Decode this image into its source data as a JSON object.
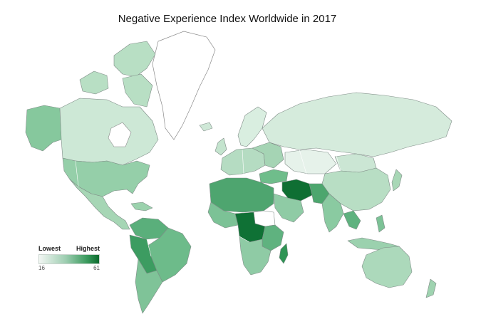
{
  "title": "Negative Experience Index Worldwide in 2017",
  "legend": {
    "low_label": "Lowest",
    "high_label": "Highest",
    "min_value": "16",
    "max_value": "61",
    "color_low": "#f2f6f3",
    "color_high": "#0b6a2d"
  },
  "colors": {
    "very_light": "#e4f1e8",
    "light": "#cfe8d7",
    "medium_light": "#b3dcc1",
    "medium": "#8fcba5",
    "medium_dark": "#5fb27f",
    "dark": "#2f9455",
    "darkest": "#0b6a2d",
    "no_data": "#ffffff"
  }
}
